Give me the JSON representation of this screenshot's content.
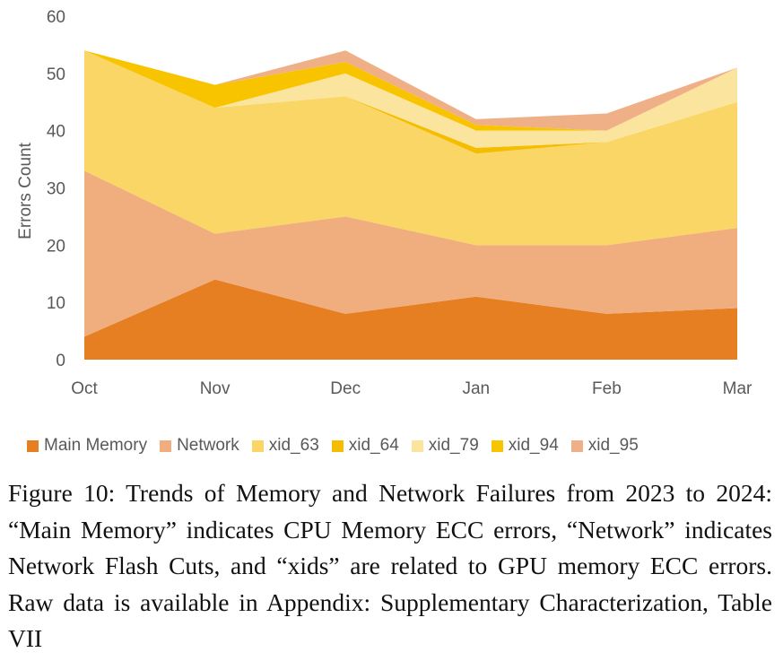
{
  "chart_data": {
    "type": "area",
    "stacked": true,
    "title": "",
    "xlabel": "",
    "ylabel": "Errors Count",
    "ylim": [
      0,
      60
    ],
    "yticks": [
      0,
      10,
      20,
      30,
      40,
      50,
      60
    ],
    "categories": [
      "Oct",
      "Nov",
      "Dec",
      "Jan",
      "Feb",
      "Mar"
    ],
    "legend_position": "bottom",
    "series": [
      {
        "name": "Main Memory",
        "color": "#e67e22",
        "values": [
          4,
          14,
          8,
          11,
          8,
          9
        ]
      },
      {
        "name": "Network",
        "color": "#f0ad7e",
        "values": [
          29,
          8,
          17,
          9,
          12,
          14
        ]
      },
      {
        "name": "xid_63",
        "color": "#fad666",
        "values": [
          21,
          22,
          21,
          16,
          18,
          22
        ]
      },
      {
        "name": "xid_64",
        "color": "#f5bd00",
        "values": [
          0,
          0,
          0,
          1,
          0,
          0
        ]
      },
      {
        "name": "xid_79",
        "color": "#fbe49e",
        "values": [
          0,
          0,
          4,
          3,
          2,
          6
        ]
      },
      {
        "name": "xid_94",
        "color": "#f8c400",
        "values": [
          0,
          4,
          2,
          1,
          0,
          0
        ]
      },
      {
        "name": "xid_95",
        "color": "#f0b087",
        "values": [
          0,
          0,
          2,
          1,
          3,
          0
        ]
      }
    ]
  },
  "caption": "Figure 10: Trends of Memory and Network Failures from 2023 to 2024: “Main Memory” indicates CPU Memory ECC errors, “Network” indicates Network Flash Cuts, and “xids” are related to GPU memory ECC errors. Raw data is available in Appendix: Supplementary Characterization, Table VII"
}
